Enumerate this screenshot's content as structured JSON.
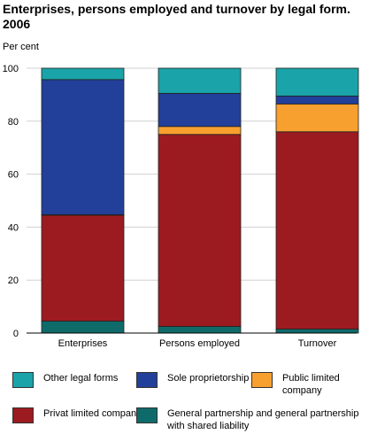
{
  "title": "Enterprises, persons employed and turnover by legal form. 2006",
  "unit_label": "Per cent",
  "colors": {
    "General partnership and general partnership with shared liability": "#0f6b6a",
    "Privat limited company": "#9c1b20",
    "Public limited company": "#f7a030",
    "Sole proprietorship": "#22409a",
    "Other legal forms": "#1aa3a8"
  },
  "legend": [
    {
      "name": "Other legal forms",
      "label": "Other legal forms"
    },
    {
      "name": "Sole proprietorship",
      "label": "Sole proprietorship"
    },
    {
      "name": "Public limited company",
      "label": "Public limited company"
    },
    {
      "name": "Privat limited company",
      "label": "Privat limited company"
    },
    {
      "name": "General partnership and general partnership with shared liability",
      "label": "General partnership and general partnership with shared liability"
    }
  ],
  "chart_data": {
    "type": "bar",
    "stacked": true,
    "title": "Enterprises, persons employed and turnover by legal form. 2006",
    "ylabel": "Per cent",
    "xlabel": "",
    "ylim": [
      0,
      100
    ],
    "yticks": [
      0,
      20,
      40,
      60,
      80,
      100
    ],
    "grid": true,
    "legend_position": "bottom",
    "categories": [
      "Enterprises",
      "Persons employed",
      "Turnover"
    ],
    "series": [
      {
        "name": "General partnership and general partnership with shared liability",
        "values": [
          4.5,
          2.5,
          1.5
        ]
      },
      {
        "name": "Privat limited company",
        "values": [
          40,
          72.5,
          74.5
        ]
      },
      {
        "name": "Public limited company",
        "values": [
          0.2,
          3,
          10.5
        ]
      },
      {
        "name": "Sole proprietorship",
        "values": [
          51,
          12.5,
          3
        ]
      },
      {
        "name": "Other legal forms",
        "values": [
          4.3,
          9.5,
          10.5
        ]
      }
    ]
  }
}
